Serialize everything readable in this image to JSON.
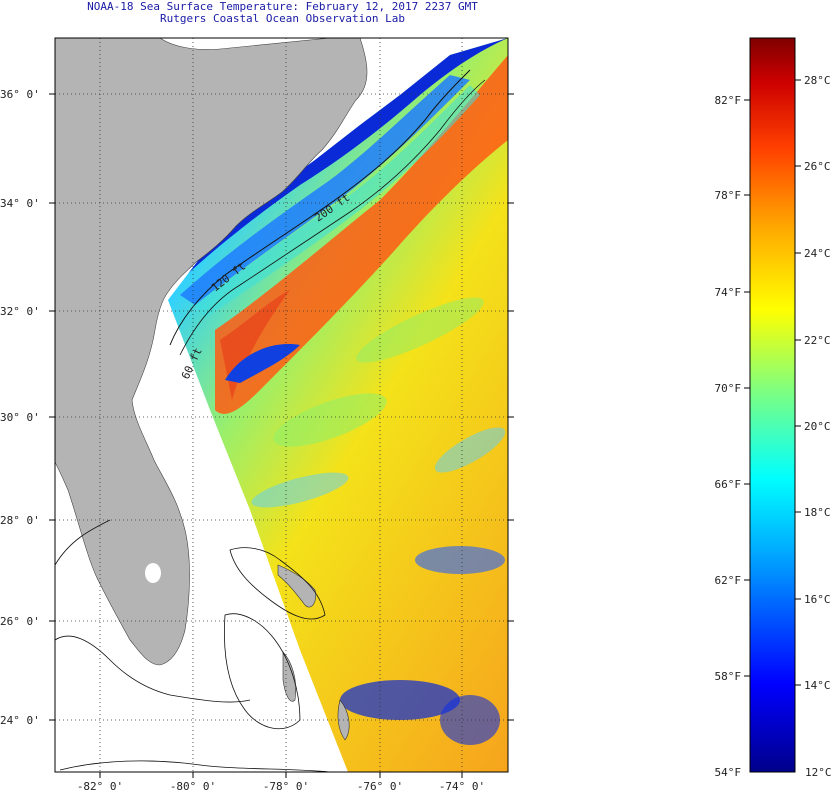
{
  "header": {
    "title_line1": "NOAA-18 Sea Surface Temperature:  February 12, 2017 2237 GMT",
    "title_line2": "Rutgers Coastal Ocean Observation Lab"
  },
  "map": {
    "lat_labels": [
      "36° 0'",
      "34° 0'",
      "32° 0'",
      "30° 0'",
      "28° 0'",
      "26° 0'",
      "24° 0'"
    ],
    "lon_labels": [
      "-82° 0'",
      "-80° 0'",
      "-78° 0'",
      "-76° 0'",
      "-74° 0'"
    ],
    "contour_labels": [
      "120 ft",
      "60 ft",
      "200 ft"
    ],
    "colors": {
      "land": "#b4b4b4",
      "no_data": "#ffffff"
    }
  },
  "colorbar": {
    "fahrenheit_labels": [
      "82°F",
      "78°F",
      "74°F",
      "70°F",
      "66°F",
      "62°F",
      "58°F",
      "54°F"
    ],
    "celsius_labels": [
      "28°C",
      "26°C",
      "24°C",
      "22°C",
      "20°C",
      "18°C",
      "16°C",
      "14°C",
      "12°C"
    ],
    "stops": [
      "#00008b",
      "#0000ff",
      "#00aaff",
      "#00ffff",
      "#7fff7f",
      "#ffff00",
      "#ffaa00",
      "#ff4000",
      "#cc0000",
      "#800000"
    ]
  }
}
